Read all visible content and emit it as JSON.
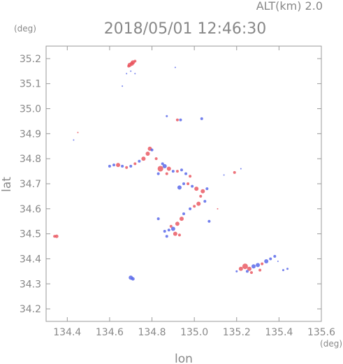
{
  "chart_data": {
    "type": "scatter",
    "title": "2018/05/01 12:46:30",
    "subtitle": "ALT(km) 2.0",
    "xlabel": "lon",
    "ylabel": "lat",
    "xunit": "(deg)",
    "yunit": "(deg)",
    "xlim": [
      134.3,
      135.6
    ],
    "ylim": [
      34.15,
      35.25
    ],
    "xticks": [
      "134.4",
      "134.6",
      "134.8",
      "135.0",
      "135.2",
      "135.4",
      "135.6"
    ],
    "yticks": [
      "34.2",
      "34.3",
      "34.4",
      "34.5",
      "34.6",
      "34.7",
      "34.8",
      "34.9",
      "35.0",
      "35.1",
      "35.2"
    ],
    "grid": false,
    "colors": {
      "positive": "#e8505a",
      "negative": "#5060e8",
      "axis": "#999999"
    },
    "series": [
      {
        "points": [
          [
            134.71,
            35.185,
            "positive",
            3
          ],
          [
            134.705,
            35.18,
            "positive",
            3
          ],
          [
            134.695,
            35.175,
            "positive",
            3
          ],
          [
            134.72,
            35.19,
            "positive",
            2
          ],
          [
            134.69,
            35.17,
            "positive",
            2
          ],
          [
            134.7,
            35.15,
            "negative",
            1
          ],
          [
            134.72,
            35.14,
            "negative",
            1
          ],
          [
            134.68,
            35.14,
            "negative",
            1
          ],
          [
            134.66,
            35.09,
            "negative",
            1
          ],
          [
            134.91,
            35.165,
            "negative",
            1
          ],
          [
            134.92,
            34.955,
            "positive",
            2
          ],
          [
            134.935,
            34.955,
            "negative",
            2
          ],
          [
            135.035,
            34.96,
            "negative",
            2
          ],
          [
            134.87,
            34.97,
            "negative",
            1.5
          ],
          [
            134.45,
            34.905,
            "positive",
            1
          ],
          [
            134.43,
            34.875,
            "negative",
            1
          ],
          [
            134.6,
            34.77,
            "negative",
            2
          ],
          [
            134.62,
            34.775,
            "negative",
            2
          ],
          [
            134.64,
            34.775,
            "positive",
            3
          ],
          [
            134.66,
            34.77,
            "negative",
            2
          ],
          [
            134.68,
            34.765,
            "positive",
            2
          ],
          [
            134.7,
            34.77,
            "negative",
            2
          ],
          [
            134.72,
            34.78,
            "positive",
            2
          ],
          [
            134.74,
            34.79,
            "negative",
            2
          ],
          [
            134.76,
            34.8,
            "positive",
            3
          ],
          [
            134.78,
            34.82,
            "positive",
            3
          ],
          [
            134.79,
            34.84,
            "positive",
            3
          ],
          [
            134.8,
            34.835,
            "negative",
            2
          ],
          [
            134.82,
            34.8,
            "positive",
            2
          ],
          [
            134.84,
            34.76,
            "positive",
            4
          ],
          [
            134.86,
            34.77,
            "negative",
            3
          ],
          [
            134.88,
            34.76,
            "positive",
            3
          ],
          [
            134.85,
            34.78,
            "negative",
            2
          ],
          [
            134.87,
            34.74,
            "positive",
            2
          ],
          [
            134.83,
            34.74,
            "negative",
            2
          ],
          [
            134.9,
            34.75,
            "negative",
            2
          ],
          [
            134.92,
            34.75,
            "positive",
            2
          ],
          [
            134.94,
            34.755,
            "negative",
            2
          ],
          [
            134.96,
            34.74,
            "negative",
            2
          ],
          [
            134.98,
            34.73,
            "positive",
            2
          ],
          [
            134.95,
            34.7,
            "negative",
            2
          ],
          [
            134.93,
            34.685,
            "negative",
            3
          ],
          [
            134.97,
            34.7,
            "positive",
            2
          ],
          [
            134.99,
            34.69,
            "negative",
            2
          ],
          [
            135.01,
            34.68,
            "positive",
            3
          ],
          [
            135.04,
            34.67,
            "positive",
            3
          ],
          [
            135.06,
            34.68,
            "negative",
            2
          ],
          [
            135.03,
            34.65,
            "positive",
            2
          ],
          [
            135.02,
            34.62,
            "positive",
            3
          ],
          [
            135.0,
            34.61,
            "positive",
            2
          ],
          [
            134.98,
            34.6,
            "negative",
            2
          ],
          [
            135.05,
            34.63,
            "negative",
            2
          ],
          [
            134.95,
            34.58,
            "negative",
            2
          ],
          [
            134.94,
            34.56,
            "positive",
            3
          ],
          [
            134.92,
            34.54,
            "positive",
            3
          ],
          [
            134.9,
            34.52,
            "negative",
            3
          ],
          [
            134.89,
            34.53,
            "positive",
            2
          ],
          [
            134.88,
            34.515,
            "negative",
            2
          ],
          [
            134.86,
            34.51,
            "negative",
            2
          ],
          [
            134.91,
            34.5,
            "positive",
            3
          ],
          [
            134.93,
            34.495,
            "positive",
            2
          ],
          [
            134.87,
            34.49,
            "negative",
            2
          ],
          [
            134.83,
            34.56,
            "negative",
            2
          ],
          [
            135.07,
            34.55,
            "negative",
            2
          ],
          [
            135.11,
            34.6,
            "positive",
            1
          ],
          [
            135.14,
            34.735,
            "negative",
            1
          ],
          [
            135.19,
            34.745,
            "positive",
            2
          ],
          [
            135.22,
            34.76,
            "negative",
            1
          ],
          [
            134.35,
            34.49,
            "positive",
            2.5
          ],
          [
            134.34,
            34.49,
            "positive",
            2
          ],
          [
            134.7,
            34.325,
            "negative",
            3
          ],
          [
            134.71,
            34.32,
            "negative",
            2.5
          ],
          [
            135.22,
            34.36,
            "positive",
            3
          ],
          [
            135.24,
            34.37,
            "positive",
            4
          ],
          [
            135.26,
            34.36,
            "positive",
            3
          ],
          [
            135.28,
            34.37,
            "negative",
            3
          ],
          [
            135.3,
            34.375,
            "negative",
            3
          ],
          [
            135.32,
            34.38,
            "positive",
            2
          ],
          [
            135.34,
            34.39,
            "negative",
            3
          ],
          [
            135.36,
            34.4,
            "negative",
            2
          ],
          [
            135.38,
            34.41,
            "negative",
            2
          ],
          [
            135.27,
            34.345,
            "positive",
            2
          ],
          [
            135.25,
            34.35,
            "negative",
            2
          ],
          [
            135.31,
            34.355,
            "positive",
            2
          ],
          [
            135.2,
            34.35,
            "negative",
            1.5
          ],
          [
            135.44,
            34.36,
            "negative",
            1.5
          ],
          [
            135.42,
            34.355,
            "negative",
            1.5
          ],
          [
            135.395,
            34.39,
            "negative",
            1
          ]
        ]
      }
    ]
  }
}
